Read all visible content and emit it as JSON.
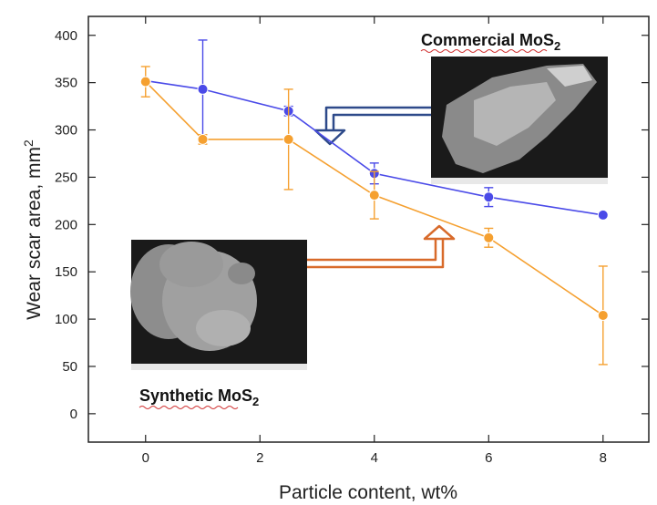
{
  "chart_data": {
    "type": "line",
    "xlabel": "Particle content, wt%",
    "ylabel": "Wear scar area, mm",
    "ylabel_sup": "2",
    "xlim": [
      -1,
      8.8
    ],
    "ylim": [
      -30,
      420
    ],
    "x_ticks": [
      0,
      2,
      4,
      6,
      8
    ],
    "y_ticks": [
      0,
      50,
      100,
      150,
      200,
      250,
      300,
      350,
      400
    ],
    "grid": false,
    "series": [
      {
        "name": "Commercial MoS2",
        "color": "#4a4ae8",
        "x": [
          0,
          1,
          2.5,
          4,
          6,
          8
        ],
        "y": [
          352,
          343,
          320,
          254,
          229,
          210
        ],
        "yerr": [
          0,
          52,
          5,
          11,
          10,
          0
        ]
      },
      {
        "name": "Synthetic MoS2",
        "color": "#f5a030",
        "x": [
          0,
          1,
          2.5,
          4,
          6,
          8
        ],
        "y": [
          351,
          290,
          290,
          231,
          186,
          104
        ],
        "yerr": [
          16,
          5,
          53,
          25,
          10,
          52
        ]
      }
    ],
    "annotations": [
      {
        "text": "Commercial MoS",
        "sub": "2"
      },
      {
        "text": "Synthetic MoS",
        "sub": "2"
      }
    ]
  }
}
